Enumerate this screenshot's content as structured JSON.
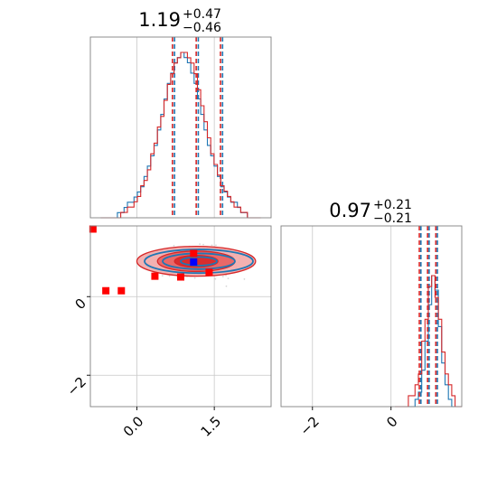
{
  "chart_data": {
    "type": "corner",
    "parameters": [
      {
        "value": "1.19",
        "plus": "+0.47",
        "minus": "−0.46",
        "xlim": [
          -0.9,
          2.6
        ],
        "ticks": [
          {
            "v": 0.0,
            "label": "0.0"
          },
          {
            "v": 1.5,
            "label": "1.5"
          }
        ]
      },
      {
        "value": "0.97",
        "plus": "+0.21",
        "minus": "−0.21",
        "ylim": [
          -2.8,
          1.8
        ],
        "ticks": [
          {
            "v": -2,
            "label": "−2"
          },
          {
            "v": 0,
            "label": "0"
          }
        ]
      }
    ],
    "series": [
      {
        "color": "#1f77b4",
        "quantile_lines_p0": [
          0.73,
          1.19,
          1.66
        ],
        "quantile_lines_p1": [
          0.76,
          0.97,
          1.18
        ],
        "hist_p0": [
          0,
          0,
          0,
          0,
          0,
          1,
          1,
          2,
          3,
          3,
          4,
          5,
          6,
          8,
          10,
          12,
          14,
          17,
          20,
          23,
          26,
          28,
          30,
          31,
          32,
          31,
          30,
          28,
          26,
          23,
          20,
          17,
          14,
          12,
          10,
          8,
          6,
          5,
          4,
          3,
          3,
          2,
          1,
          1,
          0,
          0,
          0,
          0
        ],
        "hist_p1": [
          0,
          0,
          0,
          0,
          0,
          0,
          1,
          2,
          5,
          9,
          14,
          18,
          16,
          11,
          6,
          3,
          1,
          0,
          0,
          0
        ],
        "center": [
          1.2,
          0.9
        ]
      },
      {
        "color": "#d62728",
        "quantile_lines_p0": [
          0.69,
          1.15,
          1.62
        ],
        "quantile_lines_p1": [
          0.72,
          0.93,
          1.14
        ],
        "hist_p0": [
          0,
          0,
          0,
          0,
          0,
          0,
          1,
          1,
          2,
          2,
          3,
          4,
          6,
          7,
          9,
          12,
          14,
          17,
          19,
          22,
          25,
          27,
          29,
          30,
          31,
          31,
          30,
          29,
          27,
          24,
          21,
          18,
          15,
          12,
          10,
          8,
          6,
          5,
          4,
          3,
          2,
          2,
          1,
          1,
          0,
          0,
          0,
          0
        ],
        "hist_p1": [
          0,
          0,
          0,
          0,
          1,
          1,
          2,
          3,
          6,
          8,
          11,
          12,
          10,
          8,
          5,
          3,
          2,
          1,
          0,
          0
        ],
        "center": [
          1.15,
          0.9
        ]
      }
    ],
    "markers": [
      {
        "x": -0.85,
        "y": 1.72,
        "color": "#ff0000"
      },
      {
        "x": -0.6,
        "y": 0.15,
        "color": "#ff0000"
      },
      {
        "x": -0.3,
        "y": 0.15,
        "color": "#ff0000"
      },
      {
        "x": 0.35,
        "y": 0.52,
        "color": "#ff0000"
      },
      {
        "x": 0.85,
        "y": 0.5,
        "color": "#ff0000"
      },
      {
        "x": 1.1,
        "y": 1.1,
        "color": "#ff0000"
      },
      {
        "x": 1.4,
        "y": 0.62,
        "color": "#ff0000"
      },
      {
        "x": 1.1,
        "y": 0.88,
        "color": "#0000ff"
      }
    ],
    "grid": true,
    "legend": "none"
  }
}
